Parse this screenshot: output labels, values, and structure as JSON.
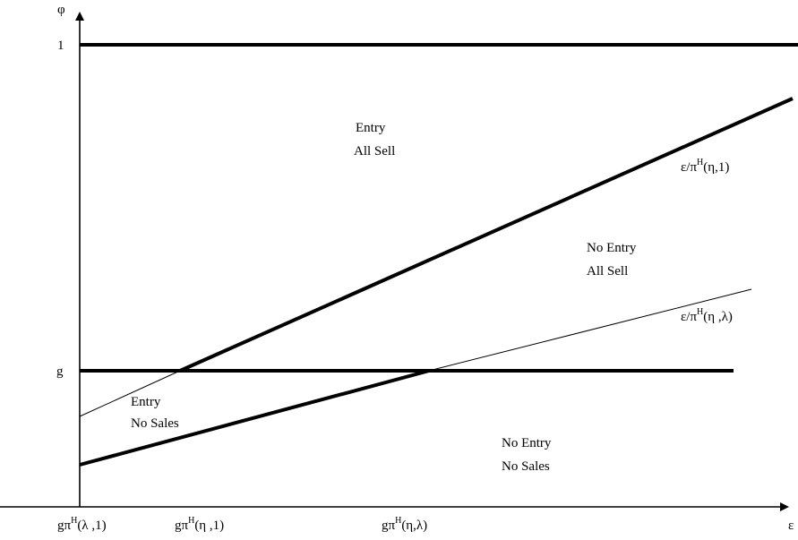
{
  "axes": {
    "y_label": "φ",
    "x_label": "ε",
    "y_ticks": [
      {
        "label": "1"
      },
      {
        "label": "g"
      }
    ]
  },
  "x_tick_labels": [
    {
      "id": "lambda1",
      "pre": "gπ",
      "sup": "H",
      "post": "(λ ,1)"
    },
    {
      "id": "eta1",
      "pre": "gπ",
      "sup": "H",
      "post": "(η ,1)"
    },
    {
      "id": "etalambda",
      "pre": "gπ",
      "sup": "H",
      "post": "(η,λ)"
    }
  ],
  "curve_labels": [
    {
      "id": "steep",
      "pre": "ε/π",
      "sup": "H",
      "post": "(η,1)"
    },
    {
      "id": "shallow",
      "pre": "ε/π",
      "sup": "H",
      "post": "(η ,λ)"
    }
  ],
  "regions": {
    "entry_all_sell": [
      "Entry",
      "All Sell"
    ],
    "no_entry_all_sell": [
      "No Entry",
      "All Sell"
    ],
    "entry_no_sales": [
      "Entry",
      "No Sales"
    ],
    "no_entry_no_sales": [
      "No Entry",
      "No Sales"
    ]
  }
}
